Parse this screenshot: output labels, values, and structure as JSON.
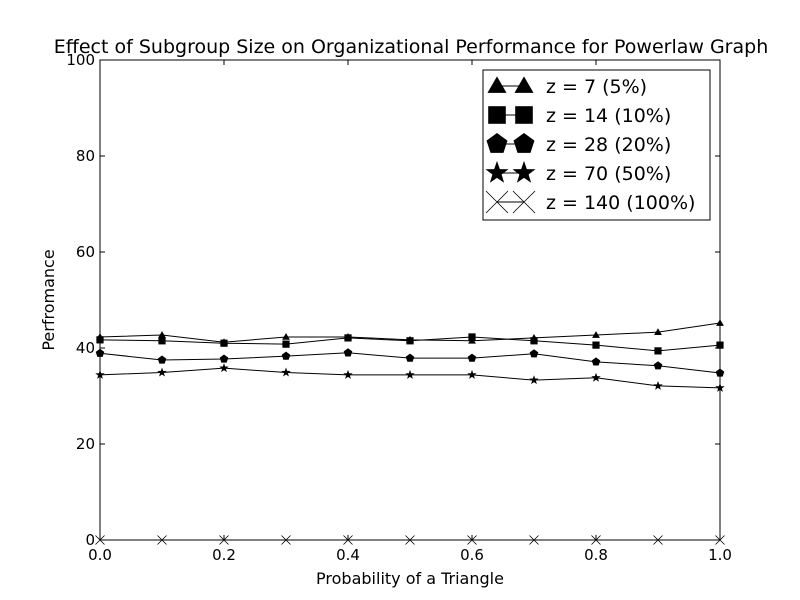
{
  "chart_data": {
    "type": "line",
    "title": "Effect of Subgroup Size on Organizational Performance for Powerlaw Graph",
    "xlabel": "Probability of a Triangle",
    "ylabel": "Perfromance",
    "xlim": [
      0.0,
      1.0
    ],
    "ylim": [
      0,
      100
    ],
    "xticks": [
      "0.0",
      "0.2",
      "0.4",
      "0.6",
      "0.8",
      "1.0"
    ],
    "yticks": [
      "0",
      "20",
      "40",
      "60",
      "80",
      "100"
    ],
    "grid": false,
    "legend_position": "top-right",
    "x": [
      0.0,
      0.1,
      0.2,
      0.3,
      0.4,
      0.5,
      0.6,
      0.7,
      0.8,
      0.9,
      1.0
    ],
    "series": [
      {
        "name": "z = 7 (5%)",
        "marker": "triangle",
        "values": [
          42.3,
          42.7,
          41.2,
          42.3,
          42.3,
          41.7,
          41.5,
          42.1,
          42.7,
          43.3,
          45.2
        ]
      },
      {
        "name": "z = 14 (10%)",
        "marker": "square",
        "values": [
          41.7,
          41.5,
          41.0,
          40.8,
          42.1,
          41.5,
          42.3,
          41.5,
          40.6,
          39.4,
          40.6
        ]
      },
      {
        "name": "z = 28 (20%)",
        "marker": "pentagon",
        "values": [
          38.9,
          37.5,
          37.7,
          38.3,
          39.0,
          37.9,
          37.9,
          38.8,
          37.1,
          36.3,
          34.8
        ]
      },
      {
        "name": "z = 70 (50%)",
        "marker": "star",
        "values": [
          34.4,
          34.9,
          35.8,
          34.9,
          34.4,
          34.4,
          34.4,
          33.3,
          33.8,
          32.1,
          31.7
        ]
      },
      {
        "name": "z = 140 (100%)",
        "marker": "x",
        "values": [
          0,
          0,
          0,
          0,
          0,
          0,
          0,
          0,
          0,
          0,
          0
        ]
      }
    ]
  }
}
